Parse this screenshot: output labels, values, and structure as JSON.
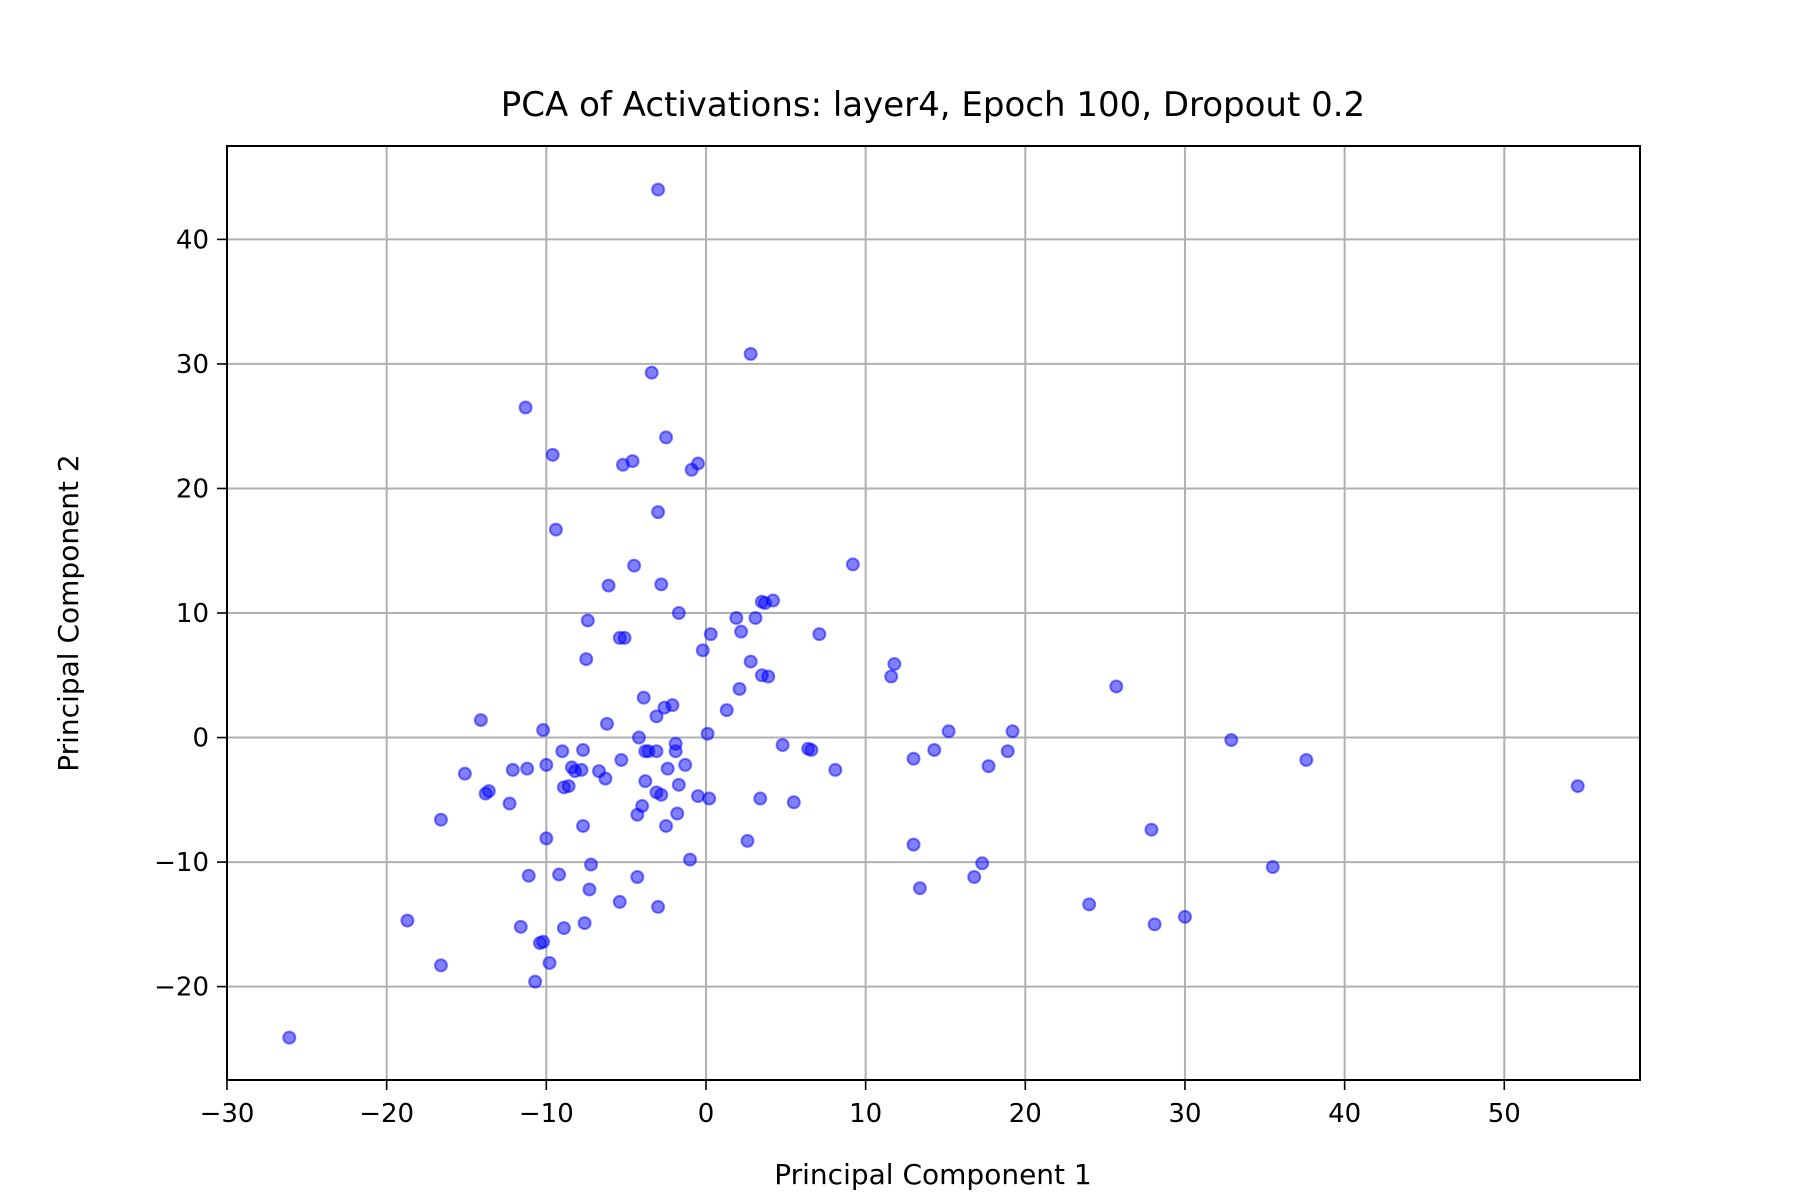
{
  "chart_data": {
    "type": "scatter",
    "title": "PCA of Activations: layer4, Epoch 100, Dropout 0.2",
    "xlabel": "Principal Component 1",
    "ylabel": "Principal Component 2",
    "xlim": [
      -30,
      58.5
    ],
    "ylim": [
      -27.5,
      47.5
    ],
    "xticks": [
      -30,
      -20,
      -10,
      0,
      10,
      20,
      30,
      40,
      50
    ],
    "yticks": [
      -20,
      -10,
      0,
      10,
      20,
      30,
      40
    ],
    "xtick_labels": [
      "−30",
      "−20",
      "−10",
      "0",
      "10",
      "20",
      "30",
      "40",
      "50"
    ],
    "ytick_labels": [
      "−20",
      "−10",
      "0",
      "10",
      "20",
      "30",
      "40"
    ],
    "grid": true,
    "marker_color": "#0000ff",
    "marker_alpha": 0.5,
    "points": [
      [
        -3.0,
        44.0
      ],
      [
        2.8,
        30.8
      ],
      [
        -3.4,
        29.3
      ],
      [
        -11.3,
        26.5
      ],
      [
        -9.6,
        22.7
      ],
      [
        -2.5,
        24.1
      ],
      [
        -5.2,
        21.9
      ],
      [
        -4.6,
        22.2
      ],
      [
        -0.9,
        21.5
      ],
      [
        -0.5,
        22.0
      ],
      [
        -3.0,
        18.1
      ],
      [
        -9.4,
        16.7
      ],
      [
        9.2,
        13.9
      ],
      [
        -4.5,
        13.8
      ],
      [
        -6.1,
        12.2
      ],
      [
        -2.8,
        12.3
      ],
      [
        -1.7,
        10.0
      ],
      [
        3.7,
        10.8
      ],
      [
        4.2,
        11.0
      ],
      [
        3.5,
        10.9
      ],
      [
        -7.4,
        9.4
      ],
      [
        1.9,
        9.6
      ],
      [
        3.1,
        9.6
      ],
      [
        2.2,
        8.5
      ],
      [
        0.3,
        8.3
      ],
      [
        7.1,
        8.3
      ],
      [
        -5.4,
        8.0
      ],
      [
        -5.1,
        8.0
      ],
      [
        -0.2,
        7.0
      ],
      [
        -7.5,
        6.3
      ],
      [
        11.8,
        5.9
      ],
      [
        11.6,
        4.9
      ],
      [
        2.8,
        6.1
      ],
      [
        3.5,
        5.0
      ],
      [
        3.9,
        4.9
      ],
      [
        25.7,
        4.1
      ],
      [
        2.1,
        3.9
      ],
      [
        -3.9,
        3.2
      ],
      [
        -2.1,
        2.6
      ],
      [
        -2.6,
        2.4
      ],
      [
        -3.1,
        1.7
      ],
      [
        1.3,
        2.2
      ],
      [
        -14.1,
        1.4
      ],
      [
        -6.2,
        1.1
      ],
      [
        -10.2,
        0.6
      ],
      [
        15.2,
        0.5
      ],
      [
        19.2,
        0.5
      ],
      [
        0.1,
        0.3
      ],
      [
        -4.2,
        0.0
      ],
      [
        32.9,
        -0.2
      ],
      [
        4.8,
        -0.6
      ],
      [
        -1.9,
        -0.5
      ],
      [
        6.4,
        -0.9
      ],
      [
        6.6,
        -1.0
      ],
      [
        -3.6,
        -1.1
      ],
      [
        -3.8,
        -1.1
      ],
      [
        -3.1,
        -1.1
      ],
      [
        -1.9,
        -1.1
      ],
      [
        -7.7,
        -1.0
      ],
      [
        -9.0,
        -1.1
      ],
      [
        14.3,
        -1.0
      ],
      [
        18.9,
        -1.1
      ],
      [
        13.0,
        -1.7
      ],
      [
        37.6,
        -1.8
      ],
      [
        -5.3,
        -1.8
      ],
      [
        -1.3,
        -2.2
      ],
      [
        -10.0,
        -2.2
      ],
      [
        -8.4,
        -2.4
      ],
      [
        -2.4,
        -2.5
      ],
      [
        -11.2,
        -2.5
      ],
      [
        -12.1,
        -2.6
      ],
      [
        -7.8,
        -2.6
      ],
      [
        -8.2,
        -2.7
      ],
      [
        -6.7,
        -2.7
      ],
      [
        17.7,
        -2.3
      ],
      [
        8.1,
        -2.6
      ],
      [
        -15.1,
        -2.9
      ],
      [
        -6.3,
        -3.3
      ],
      [
        -3.8,
        -3.5
      ],
      [
        -1.7,
        -3.8
      ],
      [
        -8.6,
        -3.9
      ],
      [
        -8.9,
        -4.0
      ],
      [
        54.6,
        -3.9
      ],
      [
        -13.6,
        -4.3
      ],
      [
        -13.8,
        -4.5
      ],
      [
        -3.1,
        -4.4
      ],
      [
        -2.8,
        -4.6
      ],
      [
        -0.5,
        -4.7
      ],
      [
        0.2,
        -4.9
      ],
      [
        3.4,
        -4.9
      ],
      [
        5.5,
        -5.2
      ],
      [
        -12.3,
        -5.3
      ],
      [
        -4.0,
        -5.5
      ],
      [
        -4.3,
        -6.2
      ],
      [
        -1.8,
        -6.1
      ],
      [
        -16.6,
        -6.6
      ],
      [
        -2.5,
        -7.1
      ],
      [
        -7.7,
        -7.1
      ],
      [
        27.9,
        -7.4
      ],
      [
        -10.0,
        -8.1
      ],
      [
        2.6,
        -8.3
      ],
      [
        13.0,
        -8.6
      ],
      [
        -1.0,
        -9.8
      ],
      [
        -7.2,
        -10.2
      ],
      [
        17.3,
        -10.1
      ],
      [
        35.5,
        -10.4
      ],
      [
        -4.3,
        -11.2
      ],
      [
        -11.1,
        -11.1
      ],
      [
        -9.2,
        -11.0
      ],
      [
        16.8,
        -11.2
      ],
      [
        -7.3,
        -12.2
      ],
      [
        13.4,
        -12.1
      ],
      [
        -5.4,
        -13.2
      ],
      [
        -3.0,
        -13.6
      ],
      [
        24.0,
        -13.4
      ],
      [
        30.0,
        -14.4
      ],
      [
        -18.7,
        -14.7
      ],
      [
        -7.6,
        -14.9
      ],
      [
        28.1,
        -15.0
      ],
      [
        -11.6,
        -15.2
      ],
      [
        -8.9,
        -15.3
      ],
      [
        -10.2,
        -16.4
      ],
      [
        -10.4,
        -16.5
      ],
      [
        -9.8,
        -18.1
      ],
      [
        -16.6,
        -18.3
      ],
      [
        -10.7,
        -19.6
      ],
      [
        -26.1,
        -24.1
      ]
    ]
  }
}
